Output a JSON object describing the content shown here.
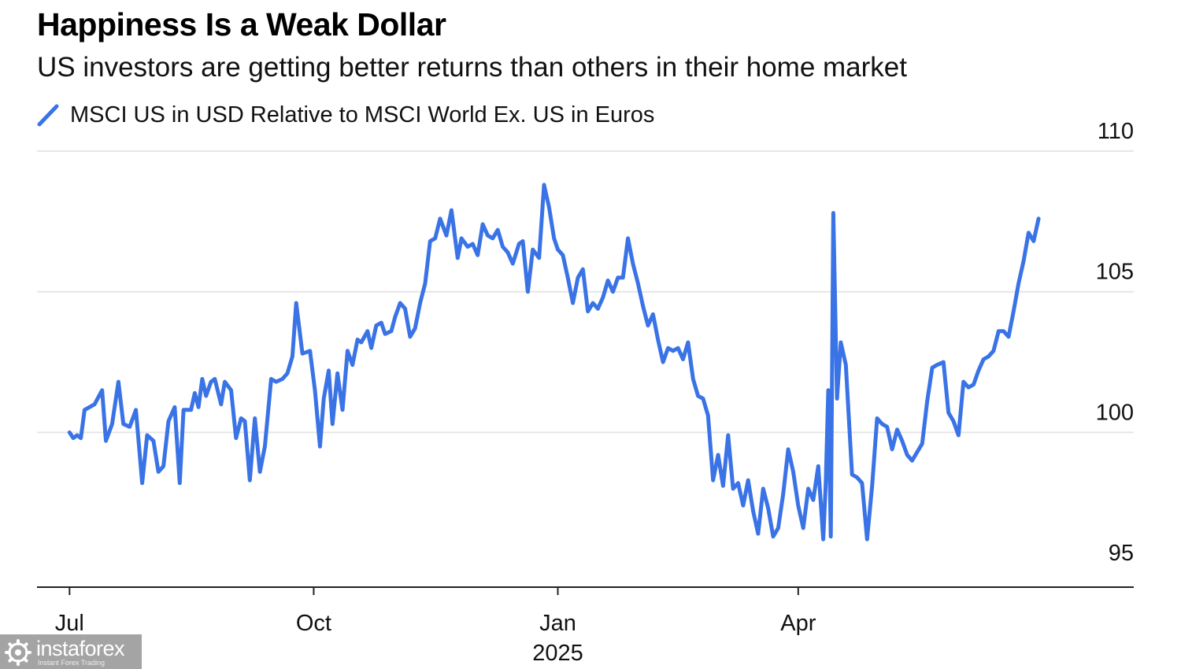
{
  "chart_data": {
    "type": "line",
    "title": "Happiness Is a Weak Dollar",
    "subtitle": "US investors are getting better returns than others in their home market",
    "series": [
      {
        "name": "MSCI US in USD Relative to MSCI World Ex. US in Euros",
        "color": "#3a73e6",
        "values": [
          [
            0.0,
            100.0
          ],
          [
            0.3,
            99.8
          ],
          [
            0.6,
            99.9
          ],
          [
            0.9,
            99.8
          ],
          [
            1.2,
            100.8
          ],
          [
            2.0,
            101.0
          ],
          [
            2.6,
            101.5
          ],
          [
            2.9,
            99.7
          ],
          [
            3.4,
            100.3
          ],
          [
            3.9,
            101.8
          ],
          [
            4.3,
            100.3
          ],
          [
            4.8,
            100.2
          ],
          [
            5.3,
            100.8
          ],
          [
            5.8,
            98.2
          ],
          [
            6.2,
            99.9
          ],
          [
            6.7,
            99.7
          ],
          [
            7.1,
            98.6
          ],
          [
            7.5,
            98.8
          ],
          [
            7.9,
            100.4
          ],
          [
            8.4,
            100.9
          ],
          [
            8.8,
            98.2
          ],
          [
            9.1,
            100.8
          ],
          [
            9.7,
            100.8
          ],
          [
            10.0,
            101.4
          ],
          [
            10.3,
            100.9
          ],
          [
            10.6,
            101.9
          ],
          [
            10.9,
            101.3
          ],
          [
            11.3,
            101.8
          ],
          [
            11.6,
            101.9
          ],
          [
            12.1,
            101.0
          ],
          [
            12.4,
            101.8
          ],
          [
            12.9,
            101.5
          ],
          [
            13.3,
            99.8
          ],
          [
            13.7,
            100.5
          ],
          [
            14.0,
            100.4
          ],
          [
            14.4,
            98.3
          ],
          [
            14.8,
            100.5
          ],
          [
            15.2,
            98.6
          ],
          [
            15.6,
            99.5
          ],
          [
            16.1,
            101.9
          ],
          [
            16.5,
            101.8
          ],
          [
            17.0,
            101.9
          ],
          [
            17.4,
            102.1
          ],
          [
            17.8,
            102.7
          ],
          [
            18.1,
            104.6
          ],
          [
            18.6,
            102.8
          ],
          [
            19.2,
            102.9
          ],
          [
            19.6,
            101.5
          ],
          [
            20.0,
            99.5
          ],
          [
            20.3,
            101.2
          ],
          [
            20.7,
            102.2
          ],
          [
            21.0,
            100.3
          ],
          [
            21.4,
            102.1
          ],
          [
            21.8,
            100.8
          ],
          [
            22.2,
            102.9
          ],
          [
            22.6,
            102.4
          ],
          [
            23.0,
            103.3
          ],
          [
            23.3,
            103.2
          ],
          [
            23.8,
            103.6
          ],
          [
            24.1,
            103.0
          ],
          [
            24.5,
            103.8
          ],
          [
            24.9,
            103.9
          ],
          [
            25.2,
            103.5
          ],
          [
            25.7,
            103.6
          ],
          [
            26.0,
            104.1
          ],
          [
            26.4,
            104.6
          ],
          [
            26.8,
            104.4
          ],
          [
            27.2,
            103.4
          ],
          [
            27.6,
            103.7
          ],
          [
            28.0,
            104.6
          ],
          [
            28.4,
            105.3
          ],
          [
            28.8,
            106.8
          ],
          [
            29.2,
            106.9
          ],
          [
            29.6,
            107.6
          ],
          [
            30.1,
            107.0
          ],
          [
            30.5,
            107.9
          ],
          [
            31.0,
            106.2
          ],
          [
            31.3,
            106.9
          ],
          [
            31.8,
            106.6
          ],
          [
            32.2,
            106.7
          ],
          [
            32.6,
            106.3
          ],
          [
            33.0,
            107.4
          ],
          [
            33.4,
            107.0
          ],
          [
            33.8,
            106.9
          ],
          [
            34.2,
            107.2
          ],
          [
            34.6,
            106.6
          ],
          [
            35.0,
            106.4
          ],
          [
            35.4,
            106.0
          ],
          [
            35.9,
            106.7
          ],
          [
            36.2,
            106.8
          ],
          [
            36.6,
            105.0
          ],
          [
            37.0,
            106.5
          ],
          [
            37.5,
            106.2
          ],
          [
            37.9,
            108.8
          ],
          [
            38.3,
            108.0
          ],
          [
            38.7,
            106.9
          ],
          [
            39.0,
            106.5
          ],
          [
            39.4,
            106.3
          ],
          [
            39.8,
            105.5
          ],
          [
            40.2,
            104.6
          ],
          [
            40.6,
            105.5
          ],
          [
            41.0,
            105.8
          ],
          [
            41.4,
            104.3
          ],
          [
            41.8,
            104.6
          ],
          [
            42.2,
            104.4
          ],
          [
            42.6,
            104.8
          ],
          [
            43.0,
            105.4
          ],
          [
            43.4,
            105.0
          ],
          [
            43.8,
            105.5
          ],
          [
            44.2,
            105.5
          ],
          [
            44.6,
            106.9
          ],
          [
            45.0,
            106.0
          ],
          [
            45.4,
            105.3
          ],
          [
            45.8,
            104.5
          ],
          [
            46.2,
            103.8
          ],
          [
            46.6,
            104.2
          ],
          [
            47.0,
            103.3
          ],
          [
            47.4,
            102.5
          ],
          [
            47.8,
            103.0
          ],
          [
            48.2,
            102.9
          ],
          [
            48.6,
            103.0
          ],
          [
            49.0,
            102.6
          ],
          [
            49.4,
            103.2
          ],
          [
            49.8,
            101.9
          ],
          [
            50.2,
            101.3
          ],
          [
            50.6,
            101.2
          ],
          [
            51.0,
            100.6
          ],
          [
            51.4,
            98.3
          ],
          [
            51.8,
            99.2
          ],
          [
            52.2,
            98.1
          ],
          [
            52.6,
            99.9
          ],
          [
            53.0,
            98.0
          ],
          [
            53.4,
            98.2
          ],
          [
            53.8,
            97.4
          ],
          [
            54.2,
            98.3
          ],
          [
            54.6,
            97.2
          ],
          [
            55.0,
            96.4
          ],
          [
            55.4,
            98.0
          ],
          [
            55.8,
            97.3
          ],
          [
            56.2,
            96.3
          ],
          [
            56.6,
            96.6
          ],
          [
            57.0,
            97.8
          ],
          [
            57.4,
            99.4
          ],
          [
            57.8,
            98.6
          ],
          [
            58.2,
            97.4
          ],
          [
            58.6,
            96.6
          ],
          [
            59.0,
            98.0
          ],
          [
            59.4,
            97.6
          ],
          [
            59.8,
            98.8
          ],
          [
            60.2,
            96.2
          ],
          [
            60.4,
            98.2
          ],
          [
            60.6,
            101.5
          ],
          [
            60.8,
            96.3
          ],
          [
            61.0,
            107.8
          ],
          [
            61.3,
            101.2
          ],
          [
            61.6,
            103.2
          ],
          [
            62.0,
            102.4
          ],
          [
            62.5,
            98.5
          ],
          [
            62.9,
            98.4
          ],
          [
            63.3,
            98.2
          ],
          [
            63.7,
            96.2
          ],
          [
            64.1,
            98.1
          ],
          [
            64.5,
            100.5
          ],
          [
            64.9,
            100.3
          ],
          [
            65.3,
            100.2
          ],
          [
            65.7,
            99.4
          ],
          [
            66.1,
            100.1
          ],
          [
            66.5,
            99.7
          ],
          [
            66.9,
            99.2
          ],
          [
            67.3,
            99.0
          ],
          [
            67.7,
            99.3
          ],
          [
            68.1,
            99.6
          ],
          [
            68.5,
            101.1
          ],
          [
            68.9,
            102.3
          ],
          [
            69.3,
            102.4
          ],
          [
            69.8,
            102.5
          ],
          [
            70.2,
            100.7
          ],
          [
            70.6,
            100.4
          ],
          [
            71.0,
            99.9
          ],
          [
            71.4,
            101.8
          ],
          [
            71.8,
            101.6
          ],
          [
            72.2,
            101.7
          ],
          [
            72.6,
            102.2
          ],
          [
            73.0,
            102.6
          ],
          [
            73.4,
            102.7
          ],
          [
            73.8,
            102.9
          ],
          [
            74.2,
            103.6
          ],
          [
            74.6,
            103.6
          ],
          [
            75.0,
            103.4
          ],
          [
            75.4,
            104.3
          ],
          [
            75.8,
            105.3
          ],
          [
            76.2,
            106.1
          ],
          [
            76.6,
            107.1
          ],
          [
            77.0,
            106.8
          ],
          [
            77.4,
            107.6
          ]
        ]
      }
    ],
    "xlim": [
      -2.6,
      85
    ],
    "ylim": [
      94.5,
      110
    ],
    "x_ticks": [
      {
        "label": "Jul",
        "x": 0
      },
      {
        "label": "Oct",
        "x": 19.5
      },
      {
        "label": "Jan",
        "x": 39.0
      },
      {
        "label": "Apr",
        "x": 58.2
      }
    ],
    "x_year_label": {
      "label": "2025",
      "x": 39.0
    },
    "y_ticks": [
      95,
      100,
      105,
      110
    ],
    "y_axis_side": "right",
    "grid": "horizontal",
    "legend": "top-left"
  },
  "watermark": {
    "brand": "instaforex",
    "tagline": "Instant Forex Trading",
    "icon": "gear-icon"
  }
}
